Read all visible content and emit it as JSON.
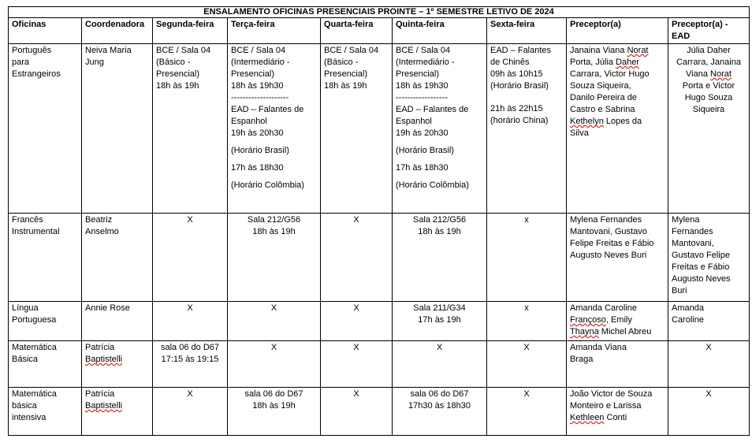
{
  "title": "ENSALAMENTO OFICINAS PRESENCIAIS PROINTE – 1º SEMESTRE LETIVO DE 2024",
  "colors": {
    "text": "#000000",
    "border": "#000000",
    "background": "#ffffff",
    "squiggle": "#e00000"
  },
  "columns": [
    {
      "key": "oficinas",
      "label": "Oficinas"
    },
    {
      "key": "coordenadora",
      "label": "Coordenadora"
    },
    {
      "key": "segunda-feira",
      "label": "Segunda-feira"
    },
    {
      "key": "terca-feira",
      "label": "Terça-feira"
    },
    {
      "key": "quarta-feira",
      "label": "Quarta-feira"
    },
    {
      "key": "quinta-feira",
      "label": "Quinta-feira"
    },
    {
      "key": "sexta-feira",
      "label": "Sexta-feira"
    },
    {
      "key": "preceptor",
      "label": "Preceptor(a)"
    },
    {
      "key": "preceptor-ead",
      "label": "Preceptor(a) - EAD"
    }
  ],
  "rows": [
    {
      "cells": [
        {
          "align": "left",
          "lines": [
            "Português",
            "para",
            "Estrangeiros"
          ]
        },
        {
          "align": "left",
          "lines": [
            "Neiva Maria",
            "Jung"
          ]
        },
        {
          "align": "left",
          "lines": [
            "BCE / Sala 04",
            "(Básico -",
            "Presencial)",
            "18h às 19h"
          ]
        },
        {
          "align": "left",
          "lines": [
            "BCE / Sala 04",
            "(Intermediário -",
            "Presencial)",
            "18h às 19h30",
            "--------------------",
            "EAD – Falantes de",
            "Espanhol",
            "19h às 20h30",
            "",
            "(Horário Brasil)",
            "",
            "17h às 18h30",
            "",
            "(Horário Colômbia)"
          ]
        },
        {
          "align": "left",
          "lines": [
            "BCE / Sala 04",
            "(Básico -",
            "Presencial)",
            "18h às 19h"
          ]
        },
        {
          "align": "left",
          "lines": [
            "BCE / Sala 04",
            "(Intermediário -",
            "Presencial)",
            "18h às 19h30",
            "------------------",
            "EAD – Falantes de",
            "Espanhol",
            "19h às 20h30",
            "",
            "(Horário Brasil)",
            "",
            "17h às 18h30",
            "",
            "(Horário Colômbia)"
          ]
        },
        {
          "align": "left",
          "lines": [
            "EAD – Falantes",
            "de Chinês",
            "09h às 10h15",
            "(Horário Brasil)",
            "",
            "",
            "21h às 22h15",
            "(horário China)"
          ]
        },
        {
          "align": "left",
          "lines": [
            "Janaina Viana ~Norat~",
            "Porta, Júlia ~Daher~",
            "Carrara, Victor Hugo",
            "Souza Siqueira,",
            "Danilo Pereira de",
            "Castro e Sabrina",
            "~Kethelyn~ Lopes da",
            "Silva"
          ]
        },
        {
          "align": "center",
          "lines": [
            "Júlia Daher",
            "Carrara, Janaina",
            "Viana ~Norat~",
            "Porta e Victor",
            "Hugo Souza",
            "Siqueira"
          ]
        }
      ]
    },
    {
      "cells": [
        {
          "align": "left",
          "lines": [
            "Francês",
            "Instrumental"
          ]
        },
        {
          "align": "left",
          "lines": [
            "Beatriz",
            "Anselmo"
          ]
        },
        {
          "align": "center",
          "lines": [
            "X"
          ]
        },
        {
          "align": "center",
          "lines": [
            "Sala 212/G56",
            "18h às 19h"
          ]
        },
        {
          "align": "center",
          "lines": [
            "X"
          ]
        },
        {
          "align": "center",
          "lines": [
            "Sala 212/G56",
            "18h às 19h"
          ]
        },
        {
          "align": "center",
          "lines": [
            "x"
          ]
        },
        {
          "align": "left",
          "lines": [
            "Mylena Fernandes",
            "Mantovani, Gustavo",
            "Felipe Freitas e Fábio",
            "Augusto Neves Buri"
          ]
        },
        {
          "align": "left",
          "lines": [
            "Mylena",
            "Fernandes",
            "Mantovani,",
            "Gustavo Felipe",
            "Freitas e Fábio",
            "Augusto Neves",
            "Buri"
          ]
        }
      ]
    },
    {
      "cells": [
        {
          "align": "left",
          "lines": [
            "Língua",
            "Portuguesa"
          ]
        },
        {
          "align": "left",
          "lines": [
            "Annie Rose"
          ]
        },
        {
          "align": "center",
          "lines": [
            "X"
          ]
        },
        {
          "align": "center",
          "lines": [
            "X"
          ]
        },
        {
          "align": "center",
          "lines": [
            "X"
          ]
        },
        {
          "align": "center",
          "lines": [
            "Sala 211/G34",
            "17h às 19h"
          ]
        },
        {
          "align": "center",
          "lines": [
            "x"
          ]
        },
        {
          "align": "left",
          "lines": [
            "Amanda Caroline",
            "~Françoso~, Emily",
            "~Thayna~ Michel Abreu"
          ]
        },
        {
          "align": "left",
          "lines": [
            "Amanda",
            "Caroline"
          ]
        }
      ]
    },
    {
      "cells": [
        {
          "align": "left",
          "lines": [
            "Matemática",
            "Básica"
          ]
        },
        {
          "align": "left",
          "lines": [
            "Patrícia",
            "~Baptistelli~"
          ]
        },
        {
          "align": "center",
          "lines": [
            "sala 06 do D67",
            "17:15 às 19:15"
          ]
        },
        {
          "align": "center",
          "lines": [
            "X"
          ]
        },
        {
          "align": "center",
          "lines": [
            "X"
          ]
        },
        {
          "align": "center",
          "lines": [
            "X"
          ]
        },
        {
          "align": "center",
          "lines": [
            "X"
          ]
        },
        {
          "align": "left",
          "lines": [
            "Amanda Viana",
            "Braga"
          ]
        },
        {
          "align": "center",
          "lines": [
            "X"
          ]
        }
      ]
    },
    {
      "cells": [
        {
          "align": "left",
          "lines": [
            "Matemática",
            "básica",
            "intensiva"
          ]
        },
        {
          "align": "left",
          "lines": [
            "Patrícia",
            "~Baptistelli~"
          ]
        },
        {
          "align": "center",
          "lines": [
            "X"
          ]
        },
        {
          "align": "center",
          "lines": [
            "sala 06 do D67",
            "18h às 19h"
          ]
        },
        {
          "align": "center",
          "lines": [
            "X"
          ]
        },
        {
          "align": "center",
          "lines": [
            "sala 06 do D67",
            "17h30 às 18h30"
          ]
        },
        {
          "align": "center",
          "lines": [
            "X"
          ]
        },
        {
          "align": "left",
          "lines": [
            "João Victor de Souza",
            "Monteiro e Larissa",
            "~Kethleen~ Conti"
          ]
        },
        {
          "align": "center",
          "lines": [
            "X"
          ]
        }
      ]
    }
  ]
}
